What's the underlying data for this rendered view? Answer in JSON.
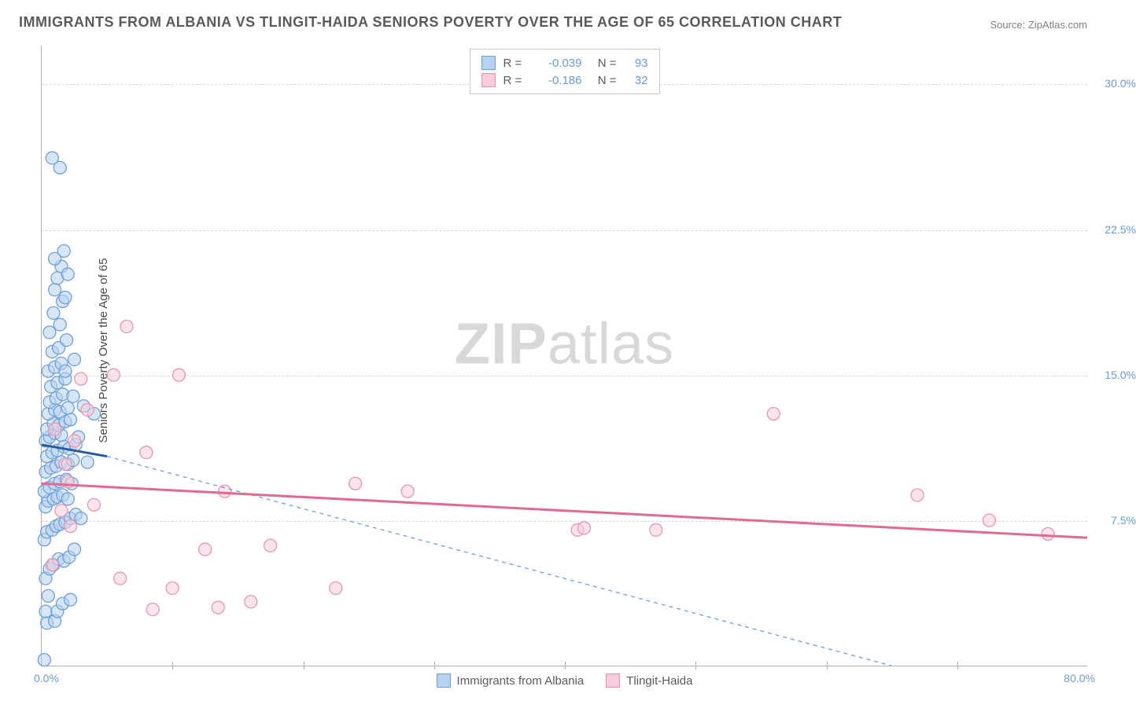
{
  "title": "IMMIGRANTS FROM ALBANIA VS TLINGIT-HAIDA SENIORS POVERTY OVER THE AGE OF 65 CORRELATION CHART",
  "source_label": "Source: ZipAtlas.com",
  "watermark_bold": "ZIP",
  "watermark_light": "atlas",
  "y_axis_title": "Seniors Poverty Over the Age of 65",
  "chart": {
    "type": "scatter",
    "xlim": [
      0,
      80
    ],
    "ylim": [
      0,
      32
    ],
    "x_tick_min_label": "0.0%",
    "x_tick_max_label": "80.0%",
    "x_gridline_positions": [
      10,
      20,
      30,
      40,
      50,
      60,
      70
    ],
    "y_gridlines": [
      {
        "value": 7.5,
        "label": "7.5%"
      },
      {
        "value": 15.0,
        "label": "15.0%"
      },
      {
        "value": 22.5,
        "label": "22.5%"
      },
      {
        "value": 30.0,
        "label": "30.0%"
      }
    ],
    "background_color": "#ffffff",
    "grid_color": "#d8d8d8",
    "marker_radius": 8,
    "marker_stroke_width": 1.3,
    "series": [
      {
        "name": "Immigrants from Albania",
        "fill_color": "#b7d2f0",
        "stroke_color": "#6f9fd8",
        "fill_opacity": 0.55,
        "R": "-0.039",
        "N": "93",
        "regression_line": {
          "x1": 0,
          "y1": 11.4,
          "x2": 5,
          "y2": 10.8,
          "color": "#2c5aa0",
          "width": 3,
          "dash": "none"
        },
        "regression_extrapolation": {
          "x1": 5,
          "y1": 10.8,
          "x2": 65,
          "y2": 0,
          "color": "#6f9fd8",
          "width": 1.3,
          "dash": "5,5"
        },
        "points": [
          [
            0.2,
            0.3
          ],
          [
            0.4,
            2.2
          ],
          [
            0.3,
            2.8
          ],
          [
            1.0,
            2.3
          ],
          [
            1.2,
            2.8
          ],
          [
            0.5,
            3.6
          ],
          [
            1.6,
            3.2
          ],
          [
            2.2,
            3.4
          ],
          [
            0.3,
            4.5
          ],
          [
            0.6,
            5.0
          ],
          [
            0.9,
            5.2
          ],
          [
            1.3,
            5.5
          ],
          [
            1.7,
            5.4
          ],
          [
            2.1,
            5.6
          ],
          [
            2.5,
            6.0
          ],
          [
            0.2,
            6.5
          ],
          [
            0.4,
            6.9
          ],
          [
            0.8,
            7.0
          ],
          [
            1.1,
            7.2
          ],
          [
            1.4,
            7.3
          ],
          [
            1.8,
            7.4
          ],
          [
            2.2,
            7.6
          ],
          [
            2.6,
            7.8
          ],
          [
            3.0,
            7.6
          ],
          [
            0.3,
            8.2
          ],
          [
            0.5,
            8.5
          ],
          [
            0.9,
            8.6
          ],
          [
            1.2,
            8.7
          ],
          [
            1.6,
            8.8
          ],
          [
            2.0,
            8.6
          ],
          [
            0.2,
            9.0
          ],
          [
            0.6,
            9.2
          ],
          [
            1.0,
            9.4
          ],
          [
            1.4,
            9.5
          ],
          [
            1.9,
            9.6
          ],
          [
            2.3,
            9.4
          ],
          [
            0.3,
            10.0
          ],
          [
            0.7,
            10.2
          ],
          [
            1.1,
            10.3
          ],
          [
            1.5,
            10.5
          ],
          [
            2.0,
            10.4
          ],
          [
            2.4,
            10.6
          ],
          [
            0.4,
            10.8
          ],
          [
            0.8,
            11.0
          ],
          [
            1.2,
            11.1
          ],
          [
            1.7,
            11.3
          ],
          [
            2.1,
            11.2
          ],
          [
            2.6,
            11.4
          ],
          [
            0.3,
            11.6
          ],
          [
            0.6,
            11.8
          ],
          [
            1.0,
            12.0
          ],
          [
            1.5,
            11.9
          ],
          [
            0.4,
            12.2
          ],
          [
            0.9,
            12.5
          ],
          [
            1.3,
            12.4
          ],
          [
            1.8,
            12.6
          ],
          [
            2.2,
            12.7
          ],
          [
            0.5,
            13.0
          ],
          [
            1.0,
            13.2
          ],
          [
            1.4,
            13.1
          ],
          [
            2.0,
            13.3
          ],
          [
            3.2,
            13.4
          ],
          [
            0.6,
            13.6
          ],
          [
            1.1,
            13.8
          ],
          [
            1.6,
            14.0
          ],
          [
            2.4,
            13.9
          ],
          [
            4.0,
            13.0
          ],
          [
            0.7,
            14.4
          ],
          [
            1.2,
            14.6
          ],
          [
            1.8,
            14.8
          ],
          [
            0.5,
            15.2
          ],
          [
            1.0,
            15.4
          ],
          [
            1.5,
            15.6
          ],
          [
            2.5,
            15.8
          ],
          [
            0.8,
            16.2
          ],
          [
            1.3,
            16.4
          ],
          [
            1.9,
            16.8
          ],
          [
            0.6,
            17.2
          ],
          [
            1.4,
            17.6
          ],
          [
            0.9,
            18.2
          ],
          [
            1.6,
            18.8
          ],
          [
            1.0,
            19.4
          ],
          [
            1.8,
            19.0
          ],
          [
            1.2,
            20.0
          ],
          [
            1.5,
            20.6
          ],
          [
            1.0,
            21.0
          ],
          [
            1.7,
            21.4
          ],
          [
            2.0,
            20.2
          ],
          [
            0.8,
            26.2
          ],
          [
            1.4,
            25.7
          ],
          [
            1.8,
            15.2
          ],
          [
            2.8,
            11.8
          ],
          [
            3.5,
            10.5
          ]
        ]
      },
      {
        "name": "Tlingit-Haida",
        "fill_color": "#f8cdd9",
        "stroke_color": "#e895b0",
        "fill_opacity": 0.55,
        "R": "-0.186",
        "N": "32",
        "regression_line": {
          "x1": 0,
          "y1": 9.4,
          "x2": 80,
          "y2": 6.6,
          "color": "#e36a8e",
          "width": 3,
          "dash": "none"
        },
        "points": [
          [
            0.8,
            5.2
          ],
          [
            1.5,
            8.0
          ],
          [
            2.0,
            9.5
          ],
          [
            2.5,
            11.6
          ],
          [
            3.0,
            14.8
          ],
          [
            1.0,
            12.2
          ],
          [
            1.8,
            10.4
          ],
          [
            3.5,
            13.2
          ],
          [
            5.5,
            15.0
          ],
          [
            6.5,
            17.5
          ],
          [
            8.0,
            11.0
          ],
          [
            10.5,
            15.0
          ],
          [
            12.5,
            6.0
          ],
          [
            14.0,
            9.0
          ],
          [
            16.0,
            3.3
          ],
          [
            17.5,
            6.2
          ],
          [
            13.5,
            3.0
          ],
          [
            8.5,
            2.9
          ],
          [
            6.0,
            4.5
          ],
          [
            10.0,
            4.0
          ],
          [
            22.5,
            4.0
          ],
          [
            24.0,
            9.4
          ],
          [
            28.0,
            9.0
          ],
          [
            41.0,
            7.0
          ],
          [
            41.5,
            7.1
          ],
          [
            47.0,
            7.0
          ],
          [
            56.0,
            13.0
          ],
          [
            67.0,
            8.8
          ],
          [
            72.5,
            7.5
          ],
          [
            77.0,
            6.8
          ],
          [
            2.2,
            7.2
          ],
          [
            4.0,
            8.3
          ]
        ]
      }
    ]
  },
  "legend_bottom": [
    {
      "label": "Immigrants from Albania",
      "fill": "#b7d2f0",
      "stroke": "#6f9fd8"
    },
    {
      "label": "Tlingit-Haida",
      "fill": "#f8cdd9",
      "stroke": "#e895b0"
    }
  ]
}
